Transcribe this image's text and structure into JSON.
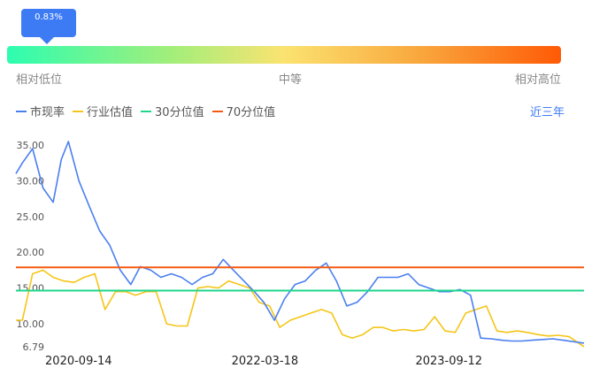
{
  "indicator": {
    "percentile_label": "0.83%",
    "low_label": "相对低位",
    "mid_label": "中等",
    "high_label": "相对高位",
    "gradient_colors": [
      "#2dfdb0",
      "#a4ee7a",
      "#fbe371",
      "#f9a63c",
      "#ff5a06"
    ]
  },
  "legend": {
    "items": [
      {
        "label": "市现率",
        "color": "#4a7ff0"
      },
      {
        "label": "行业估值",
        "color": "#f5c518"
      },
      {
        "label": "30分位值",
        "color": "#1fd68c"
      },
      {
        "label": "70分位值",
        "color": "#f45a12"
      }
    ],
    "period_label": "近三年"
  },
  "chart_data": {
    "type": "line",
    "title": "",
    "xlabel": "",
    "ylabel": "",
    "ylim": [
      6.79,
      35.0
    ],
    "yticks": [
      "35.00",
      "30.00",
      "25.00",
      "20.00",
      "15.00",
      "10.00",
      "6.79"
    ],
    "ytick_values": [
      35,
      30,
      25,
      20,
      15,
      10,
      6.79
    ],
    "xticks": [
      "2020-09-14",
      "2022-03-18",
      "2023-09-12"
    ],
    "xlim": [
      "2020-03-13",
      "2024-10-15"
    ],
    "grid": false,
    "series": [
      {
        "name": "市现率",
        "color": "#4a7ff0",
        "x": [
          "2020-03-13",
          "2020-04-01",
          "2020-05-01",
          "2020-06-01",
          "2020-07-01",
          "2020-07-25",
          "2020-08-15",
          "2020-09-15",
          "2020-10-15",
          "2020-11-15",
          "2020-12-15",
          "2021-01-15",
          "2021-02-15",
          "2021-03-15",
          "2021-04-15",
          "2021-05-15",
          "2021-06-15",
          "2021-07-15",
          "2021-08-15",
          "2021-09-15",
          "2021-10-15",
          "2021-11-15",
          "2021-12-15",
          "2022-01-15",
          "2022-02-15",
          "2022-03-15",
          "2022-04-15",
          "2022-05-15",
          "2022-06-15",
          "2022-07-15",
          "2022-08-15",
          "2022-09-15",
          "2022-10-15",
          "2022-11-15",
          "2022-12-15",
          "2023-01-15",
          "2023-02-15",
          "2023-03-15",
          "2023-04-15",
          "2023-05-15",
          "2023-06-15",
          "2023-07-15",
          "2023-08-15",
          "2023-09-15",
          "2023-10-15",
          "2023-11-15",
          "2023-12-15",
          "2024-01-15",
          "2024-02-15",
          "2024-03-15",
          "2024-04-15",
          "2024-05-15",
          "2024-06-15",
          "2024-07-15",
          "2024-08-15",
          "2024-09-15",
          "2024-10-15"
        ],
        "values": [
          31.0,
          32.5,
          34.5,
          29.0,
          27.0,
          33.0,
          35.5,
          30.0,
          26.5,
          23.0,
          21.0,
          17.5,
          15.5,
          18.0,
          17.5,
          16.5,
          17.0,
          16.5,
          15.5,
          16.5,
          17.0,
          19.0,
          17.5,
          16.0,
          14.5,
          13.0,
          10.5,
          13.5,
          15.5,
          16.0,
          17.5,
          18.5,
          16.0,
          12.5,
          13.0,
          14.5,
          16.5,
          16.5,
          16.5,
          17.0,
          15.5,
          15.0,
          14.5,
          14.5,
          14.8,
          14.0,
          8.0,
          7.9,
          7.7,
          7.6,
          7.6,
          7.7,
          7.8,
          7.9,
          7.7,
          7.5,
          7.3
        ]
      },
      {
        "name": "行业估值",
        "color": "#f5c518",
        "x": [
          "2020-03-13",
          "2020-04-01",
          "2020-05-01",
          "2020-06-01",
          "2020-07-01",
          "2020-08-01",
          "2020-09-01",
          "2020-10-01",
          "2020-11-01",
          "2020-12-01",
          "2021-01-01",
          "2021-02-01",
          "2021-03-01",
          "2021-04-01",
          "2021-05-01",
          "2021-06-01",
          "2021-07-01",
          "2021-08-01",
          "2021-09-01",
          "2021-10-01",
          "2021-11-01",
          "2021-12-01",
          "2022-01-01",
          "2022-02-01",
          "2022-03-01",
          "2022-04-01",
          "2022-05-01",
          "2022-06-01",
          "2022-07-01",
          "2022-08-01",
          "2022-09-01",
          "2022-10-01",
          "2022-11-01",
          "2022-12-01",
          "2023-01-01",
          "2023-02-01",
          "2023-03-01",
          "2023-04-01",
          "2023-05-01",
          "2023-06-01",
          "2023-07-01",
          "2023-08-01",
          "2023-09-01",
          "2023-10-01",
          "2023-11-01",
          "2023-12-01",
          "2024-01-01",
          "2024-02-01",
          "2024-03-01",
          "2024-04-01",
          "2024-05-01",
          "2024-06-01",
          "2024-07-01",
          "2024-08-01",
          "2024-09-01",
          "2024-10-15"
        ],
        "values": [
          10.5,
          10.5,
          17.0,
          17.5,
          16.5,
          16.0,
          15.8,
          16.5,
          17.0,
          12.0,
          14.5,
          14.5,
          14.0,
          14.5,
          14.5,
          10.0,
          9.7,
          9.7,
          15.0,
          15.2,
          15.0,
          16.0,
          15.5,
          15.0,
          13.0,
          12.5,
          9.5,
          10.5,
          11.0,
          11.5,
          12.0,
          11.5,
          8.5,
          8.0,
          8.5,
          9.5,
          9.5,
          9.0,
          9.2,
          9.0,
          9.2,
          11.0,
          9.0,
          8.8,
          11.5,
          12.0,
          12.5,
          9.0,
          8.8,
          9.0,
          8.8,
          8.5,
          8.3,
          8.4,
          8.2,
          6.8
        ]
      },
      {
        "name": "30分位值",
        "color": "#1fd68c",
        "x": [
          "2020-03-13",
          "2024-10-15"
        ],
        "values": [
          14.65,
          14.65
        ]
      },
      {
        "name": "70分位值",
        "color": "#f45a12",
        "x": [
          "2020-03-13",
          "2024-10-15"
        ],
        "values": [
          17.9,
          17.9
        ]
      }
    ]
  }
}
